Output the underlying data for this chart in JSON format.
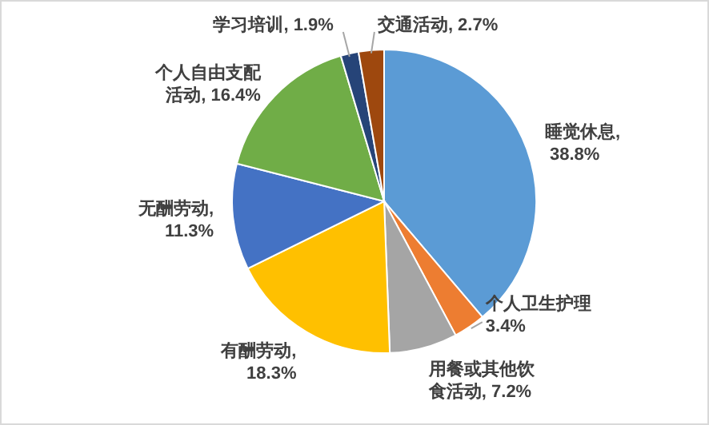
{
  "chart_data": {
    "type": "pie",
    "categories": [
      "睡觉休息",
      "个人卫生护理",
      "用餐或其他饮食活动",
      "有酬劳动",
      "无酬劳动",
      "个人自由支配活动",
      "学习培训",
      "交通活动"
    ],
    "values": [
      38.8,
      3.4,
      7.2,
      18.3,
      11.3,
      16.4,
      1.9,
      2.7
    ],
    "value_labels": [
      ", 38.8%",
      "3.4%",
      ", 7.2%",
      ", 18.3%",
      ", 11.3%",
      ", 16.4%",
      ", 1.9%",
      ", 2.7%"
    ],
    "colors": [
      "#5b9bd5",
      "#ed7d31",
      "#a5a5a5",
      "#ffc000",
      "#4472c4",
      "#70ad47",
      "#264478",
      "#9e480e"
    ]
  }
}
